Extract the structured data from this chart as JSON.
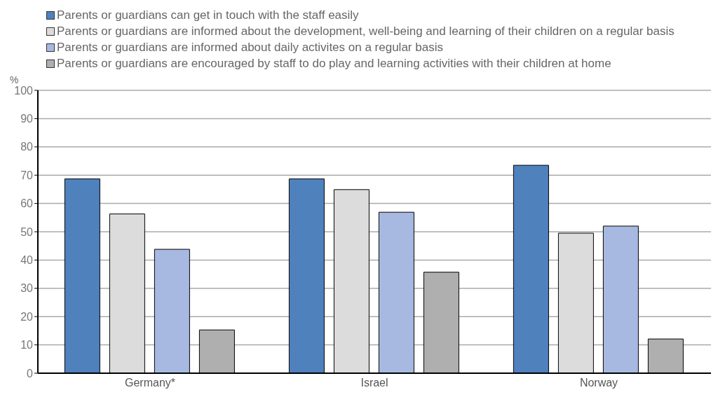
{
  "chart_data": {
    "type": "bar",
    "ylabel": "%",
    "categories": [
      "Germany*",
      "Israel",
      "Norway"
    ],
    "series": [
      {
        "name": "Parents or guardians can get in touch with the staff easily",
        "color": "#4f81bd",
        "values": [
          68.7,
          68.7,
          73.5
        ]
      },
      {
        "name": "Parents or guardians are informed about the development, well-being and learning of their children on a regular basis",
        "color": "#dcdcdc",
        "values": [
          56.3,
          64.9,
          49.5
        ]
      },
      {
        "name": "Parents or guardians are informed about daily activites on a regular basis",
        "color": "#a7b9e1",
        "values": [
          43.8,
          56.9,
          52.0
        ]
      },
      {
        "name": "Parents or guardians are encouraged by staff to do play and learning activities with their children at home",
        "color": "#afafaf",
        "values": [
          15.3,
          35.7,
          12.1
        ]
      }
    ],
    "ylim": [
      0,
      100
    ],
    "yticks": [
      0,
      10,
      20,
      30,
      40,
      50,
      60,
      70,
      80,
      90,
      100
    ],
    "grid": "y",
    "legend": "top"
  }
}
